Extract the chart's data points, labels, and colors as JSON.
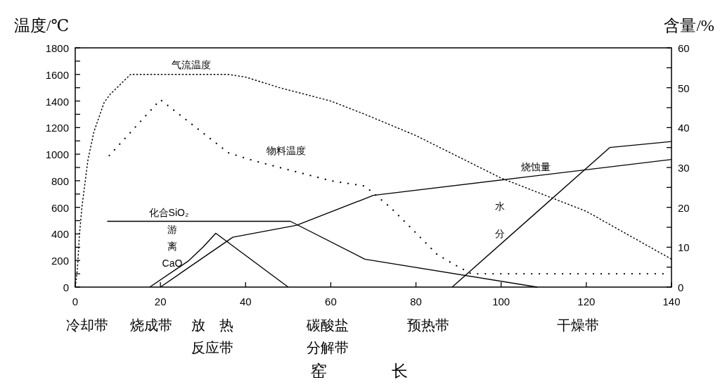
{
  "chart_data": {
    "type": "line",
    "ylabel": "温度/℃",
    "y2label": "含量/%",
    "xlabel": "窑　　　　长",
    "xlim": [
      0,
      140
    ],
    "xticks": [
      0,
      20,
      40,
      60,
      80,
      100,
      120,
      140
    ],
    "ylim": [
      0,
      1800
    ],
    "yticks": [
      0,
      {
        "value": 100,
        "label": null
      },
      200,
      {
        "value": 300,
        "label": null
      },
      400,
      {
        "value": 500,
        "label": null
      },
      600,
      {
        "value": 700,
        "label": null
      },
      800,
      {
        "value": 900,
        "label": null
      },
      1000,
      {
        "value": 1100,
        "label": null
      },
      1200,
      {
        "value": 1300,
        "label": null
      },
      1400,
      {
        "value": 1500,
        "label": null
      },
      1600,
      {
        "value": 1700,
        "label": null
      },
      1800
    ],
    "y2lim": [
      0,
      60
    ],
    "y2ticks": [
      0,
      {
        "value": 5,
        "label": null
      },
      10,
      {
        "value": 15,
        "label": null
      },
      20,
      {
        "value": 25,
        "label": null
      },
      30,
      {
        "value": 35,
        "label": null
      },
      40,
      {
        "value": 45,
        "label": null
      },
      50,
      {
        "value": 55,
        "label": null
      },
      60
    ],
    "series": [
      {
        "name": "气流温度",
        "color": "#000000",
        "line_style": "dashed",
        "x": [
          0,
          0.5,
          1,
          1.6,
          3,
          4.4,
          6.8,
          8.2,
          13,
          36,
          40,
          48,
          60,
          68,
          80,
          100,
          120,
          140
        ],
        "values": [
          0,
          130,
          400,
          610,
          960,
          1170,
          1390,
          1450,
          1600,
          1600,
          1580,
          1500,
          1400,
          1300,
          1140,
          820,
          570,
          210
        ]
      },
      {
        "name": "物料温度",
        "color": "#000000",
        "line_style": "dotted",
        "x": [
          8,
          20,
          36,
          42,
          60,
          68,
          74,
          79,
          85,
          89,
          93,
          138
        ],
        "values": [
          990,
          1410,
          1010,
          950,
          800,
          760,
          600,
          440,
          245,
          170,
          100,
          100
        ]
      },
      {
        "name": "化合SiO₂",
        "color": "#000000",
        "line_style": "solid",
        "axis": "y2",
        "x": [
          7.5,
          50.5,
          68,
          108.5
        ],
        "values": [
          16.5,
          16.5,
          7,
          0
        ]
      },
      {
        "name": "游离CaO",
        "color": "#000000",
        "line_style": "solid",
        "axis": "y2",
        "x": [
          17.5,
          26.5,
          30,
          33,
          50
        ],
        "values": [
          0,
          6.5,
          10,
          13.5,
          0
        ]
      },
      {
        "name": "烧蚀量",
        "color": "#000000",
        "line_style": "solid",
        "axis": "y2",
        "x": [
          20,
          37,
          52,
          70,
          140
        ],
        "values": [
          0,
          12.5,
          15.5,
          23,
          32
        ]
      },
      {
        "name": "水分",
        "color": "#000000",
        "line_style": "solid",
        "axis": "y2",
        "x": [
          88.5,
          125.5,
          140
        ],
        "values": [
          0,
          35,
          36.5
        ]
      }
    ],
    "annotations": [
      "冷却带",
      "烧成带",
      "放　热反应带",
      "碳酸盐分解带",
      "预热带",
      "干燥带"
    ]
  }
}
